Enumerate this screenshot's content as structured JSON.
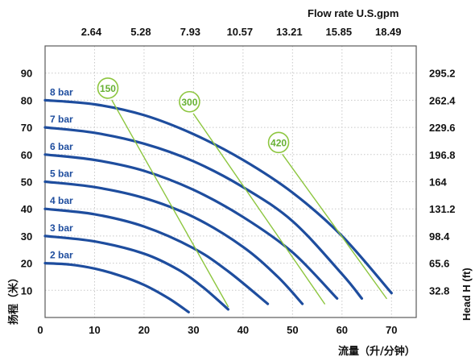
{
  "chart_data": {
    "type": "line",
    "title": "",
    "xlabel": "流量（升/分钟）",
    "ylabel": "扬程（米）",
    "top_axis_title": "Flow rate U.S.gpm",
    "right_axis_title": "Head H (ft)",
    "xlim": [
      0,
      75
    ],
    "ylim": [
      0,
      100
    ],
    "x_ticks": [
      "0",
      "10",
      "20",
      "30",
      "40",
      "50",
      "60",
      "70"
    ],
    "y_ticks": [
      "10",
      "20",
      "30",
      "40",
      "50",
      "60",
      "70",
      "80",
      "90"
    ],
    "top_ticks": [
      "2.64",
      "5.28",
      "7.93",
      "10.57",
      "13.21",
      "15.85",
      "18.49"
    ],
    "right_ticks": [
      "32.8",
      "65.6",
      "98.4",
      "131.2",
      "164",
      "196.8",
      "229.6",
      "262.4",
      "295.2"
    ],
    "grid": true,
    "colors": {
      "pressure": "#1e4d9e",
      "air": "#8dc63f",
      "air_text": "#66b032",
      "frame": "#5a5a5a"
    },
    "series": [
      {
        "name": "2 bar",
        "kind": "pressure",
        "x": [
          0,
          5,
          10,
          15,
          20,
          25,
          29
        ],
        "y": [
          20,
          19.5,
          18,
          15.5,
          12,
          7,
          2
        ]
      },
      {
        "name": "3 bar",
        "kind": "pressure",
        "x": [
          0,
          10,
          20,
          27,
          32,
          37
        ],
        "y": [
          30,
          28,
          23.5,
          17.5,
          11,
          3
        ]
      },
      {
        "name": "4 bar",
        "kind": "pressure",
        "x": [
          0,
          10,
          20,
          30,
          37,
          45
        ],
        "y": [
          40,
          38,
          33.5,
          25.5,
          17,
          5
        ]
      },
      {
        "name": "5 bar",
        "kind": "pressure",
        "x": [
          0,
          10,
          20,
          30,
          40,
          47,
          52
        ],
        "y": [
          50,
          48,
          44,
          37,
          26,
          15,
          5
        ]
      },
      {
        "name": "6 bar",
        "kind": "pressure",
        "x": [
          0,
          10,
          20,
          30,
          40,
          50,
          59
        ],
        "y": [
          60,
          58,
          54,
          47,
          37,
          24,
          7
        ]
      },
      {
        "name": "7 bar",
        "kind": "pressure",
        "x": [
          0,
          10,
          20,
          30,
          40,
          50,
          60,
          64
        ],
        "y": [
          70,
          68,
          64,
          57.5,
          48,
          35.5,
          16,
          7
        ]
      },
      {
        "name": "8 bar",
        "kind": "pressure",
        "x": [
          0,
          10,
          20,
          30,
          40,
          50,
          60,
          70
        ],
        "y": [
          80,
          78.5,
          74.5,
          67.5,
          58,
          46,
          30,
          9
        ]
      },
      {
        "name": "150",
        "kind": "air",
        "x": [
          13.5,
          37
        ],
        "y": [
          80,
          4
        ]
      },
      {
        "name": "300",
        "kind": "air",
        "x": [
          30,
          56.5
        ],
        "y": [
          75,
          5
        ]
      },
      {
        "name": "420",
        "kind": "air",
        "x": [
          48,
          69
        ],
        "y": [
          60,
          7
        ]
      }
    ]
  }
}
